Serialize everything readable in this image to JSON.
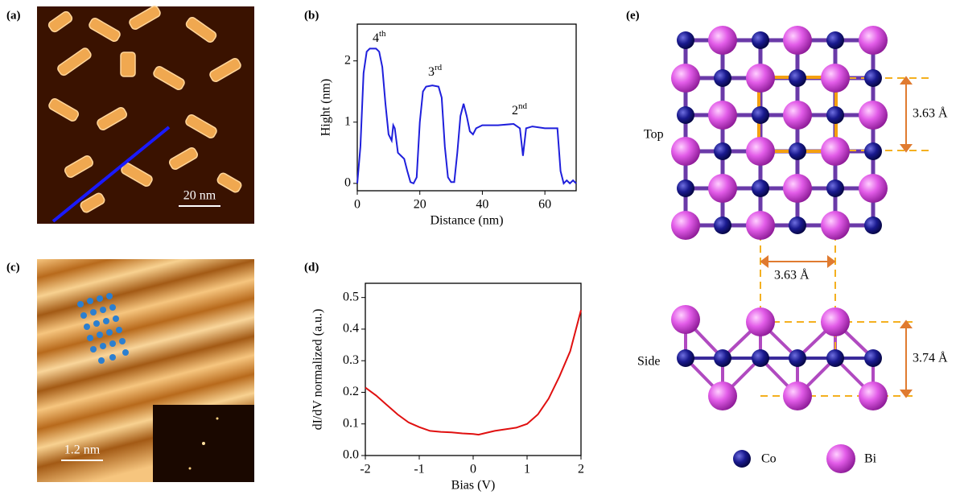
{
  "panel_labels": [
    "(a)",
    "(b)",
    "(c)",
    "(d)",
    "(e)"
  ],
  "image_a": {
    "scale_bar": "20 nm"
  },
  "image_c": {
    "scale_bar": "1.2 nm"
  },
  "chart_data": [
    {
      "type": "line",
      "xlabel": "Distance (nm)",
      "ylabel": "Hight (nm)",
      "color": "#1f1fdc",
      "x": [
        0,
        1,
        2,
        3,
        4,
        6,
        7,
        8,
        9,
        10,
        11,
        11.5,
        12,
        13,
        14,
        15,
        16,
        17,
        18,
        19,
        20,
        21,
        22,
        24,
        26,
        27,
        28,
        29,
        30,
        31,
        32,
        33,
        34,
        35,
        36,
        37,
        38,
        40,
        45,
        50,
        52,
        53,
        54,
        56,
        60,
        62,
        64,
        65,
        66,
        67,
        68,
        69,
        70
      ],
      "values": [
        0,
        0.6,
        1.8,
        2.15,
        2.2,
        2.2,
        2.15,
        1.9,
        1.3,
        0.8,
        0.7,
        0.95,
        0.9,
        0.5,
        0.45,
        0.4,
        0.2,
        0.02,
        0,
        0.1,
        1.0,
        1.5,
        1.58,
        1.6,
        1.58,
        1.4,
        0.6,
        0.1,
        0.02,
        0.02,
        0.5,
        1.1,
        1.3,
        1.1,
        0.85,
        0.8,
        0.9,
        0.95,
        0.95,
        0.97,
        0.9,
        0.45,
        0.9,
        0.93,
        0.9,
        0.9,
        0.9,
        0.2,
        0,
        0.05,
        0,
        0.05,
        0
      ],
      "xlim": [
        0,
        70
      ],
      "xticks": [
        0,
        20,
        40,
        60
      ],
      "ylim": [
        -0.12,
        2.6
      ],
      "yticks": [
        0,
        1,
        2
      ],
      "annotations": [
        {
          "text": "4",
          "sup": "th"
        },
        {
          "text": "3",
          "sup": "rd"
        },
        {
          "text": "2",
          "sup": "nd"
        }
      ]
    },
    {
      "type": "line",
      "xlabel": "Bias (V)",
      "ylabel": "dI/dV normalized (a.u.)",
      "color": "#e01010",
      "x": [
        -2,
        -1.8,
        -1.6,
        -1.4,
        -1.2,
        -1,
        -0.8,
        -0.6,
        -0.4,
        -0.2,
        0,
        0.1,
        0.2,
        0.4,
        0.6,
        0.8,
        1,
        1.2,
        1.4,
        1.6,
        1.8,
        2
      ],
      "values": [
        0.215,
        0.19,
        0.16,
        0.13,
        0.105,
        0.09,
        0.078,
        0.075,
        0.073,
        0.07,
        0.068,
        0.066,
        0.07,
        0.078,
        0.083,
        0.088,
        0.1,
        0.13,
        0.18,
        0.25,
        0.33,
        0.46
      ],
      "xlim": [
        -2,
        2
      ],
      "xticks": [
        -2,
        -1,
        0,
        1,
        2
      ],
      "ylim": [
        0,
        0.545
      ],
      "yticks": [
        {
          "value": 0,
          "label": "0.0"
        },
        0.1,
        0.2,
        0.3,
        0.4,
        0.5
      ]
    }
  ],
  "structure": {
    "top_label": "Top",
    "side_label": "Side",
    "lattice_top": "3.63 Å",
    "lattice_between": "3.63 Å",
    "height": "3.74 Å",
    "legend": [
      "Co",
      "Bi"
    ]
  }
}
